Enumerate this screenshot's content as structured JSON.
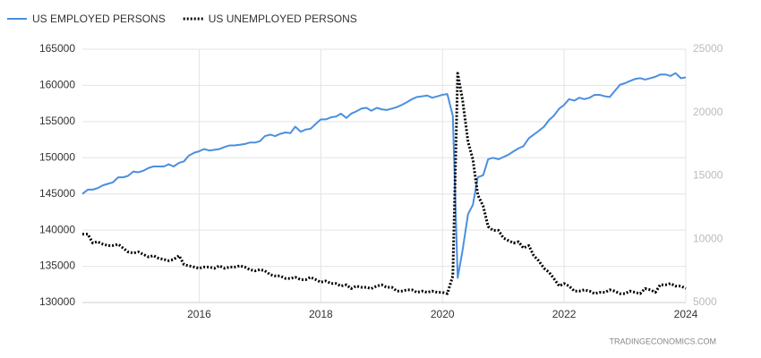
{
  "chart_data": {
    "type": "line",
    "watermark": "TRADINGECONOMICS.COM",
    "x": [
      2014.08,
      2014.17,
      2014.25,
      2014.33,
      2014.42,
      2014.5,
      2014.58,
      2014.67,
      2014.75,
      2014.83,
      2014.92,
      2015.0,
      2015.08,
      2015.17,
      2015.25,
      2015.33,
      2015.42,
      2015.5,
      2015.58,
      2015.67,
      2015.75,
      2015.83,
      2015.92,
      2016.0,
      2016.08,
      2016.17,
      2016.25,
      2016.33,
      2016.42,
      2016.5,
      2016.58,
      2016.67,
      2016.75,
      2016.83,
      2016.92,
      2017.0,
      2017.08,
      2017.17,
      2017.25,
      2017.33,
      2017.42,
      2017.5,
      2017.58,
      2017.67,
      2017.75,
      2017.83,
      2017.92,
      2018.0,
      2018.08,
      2018.17,
      2018.25,
      2018.33,
      2018.42,
      2018.5,
      2018.58,
      2018.67,
      2018.75,
      2018.83,
      2018.92,
      2019.0,
      2019.08,
      2019.17,
      2019.25,
      2019.33,
      2019.42,
      2019.5,
      2019.58,
      2019.67,
      2019.75,
      2019.83,
      2019.92,
      2020.0,
      2020.08,
      2020.17,
      2020.25,
      2020.33,
      2020.42,
      2020.5,
      2020.58,
      2020.67,
      2020.75,
      2020.83,
      2020.92,
      2021.0,
      2021.08,
      2021.17,
      2021.25,
      2021.33,
      2021.42,
      2021.5,
      2021.58,
      2021.67,
      2021.75,
      2021.83,
      2021.92,
      2022.0,
      2022.08,
      2022.17,
      2022.25,
      2022.33,
      2022.42,
      2022.5,
      2022.58,
      2022.67,
      2022.75,
      2022.83,
      2022.92,
      2023.0,
      2023.08,
      2023.17,
      2023.25,
      2023.33,
      2023.42,
      2023.5,
      2023.58,
      2023.67,
      2023.75,
      2023.83,
      2023.92,
      2024.0
    ],
    "series": [
      {
        "name": "US EMPLOYED PERSONS",
        "color": "#4a8fe0",
        "style": "solid",
        "axis": "y",
        "values": [
          145000,
          145600,
          145600,
          145800,
          146200,
          146400,
          146600,
          147300,
          147300,
          147500,
          148100,
          148000,
          148200,
          148600,
          148800,
          148800,
          148800,
          149100,
          148800,
          149300,
          149500,
          150300,
          150700,
          150900,
          151200,
          151000,
          151100,
          151200,
          151500,
          151700,
          151700,
          151800,
          151900,
          152100,
          152100,
          152300,
          153000,
          153200,
          153000,
          153300,
          153500,
          153400,
          154300,
          153600,
          153900,
          154000,
          154700,
          155300,
          155300,
          155600,
          155700,
          156100,
          155500,
          156100,
          156400,
          156800,
          156900,
          156500,
          156900,
          156700,
          156600,
          156800,
          157000,
          157300,
          157700,
          158100,
          158400,
          158500,
          158600,
          158300,
          158500,
          158700,
          158800,
          155800,
          133400,
          137200,
          142200,
          143500,
          147300,
          147600,
          149800,
          150000,
          149800,
          150100,
          150400,
          150900,
          151300,
          151600,
          152700,
          153200,
          153700,
          154300,
          155200,
          155800,
          156800,
          157300,
          158100,
          157900,
          158300,
          158100,
          158300,
          158700,
          158700,
          158500,
          158400,
          159200,
          160100,
          160300,
          160600,
          160900,
          161000,
          160800,
          161000,
          161200,
          161500,
          161500,
          161300,
          161700,
          161000,
          161100
        ]
      },
      {
        "name": "US UNEMPLOYED PERSONS",
        "color": "#000000",
        "style": "dotted",
        "axis": "y2",
        "values": [
          10400,
          10400,
          9700,
          9800,
          9600,
          9500,
          9500,
          9600,
          9300,
          9000,
          8900,
          9000,
          8800,
          8600,
          8700,
          8500,
          8400,
          8300,
          8400,
          8700,
          8000,
          7900,
          7800,
          7700,
          7800,
          7800,
          7700,
          7900,
          7700,
          7800,
          7800,
          7900,
          7800,
          7600,
          7500,
          7600,
          7500,
          7200,
          7100,
          7100,
          6900,
          6900,
          7000,
          6800,
          6800,
          7000,
          6800,
          6600,
          6700,
          6500,
          6500,
          6300,
          6400,
          6100,
          6300,
          6200,
          6200,
          6100,
          6300,
          6400,
          6200,
          6200,
          5900,
          5900,
          6000,
          6000,
          5800,
          5900,
          5800,
          5900,
          5800,
          5800,
          5700,
          7100,
          23100,
          21000,
          17700,
          16300,
          13500,
          12600,
          11000,
          10700,
          10700,
          10100,
          9900,
          9700,
          9800,
          9300,
          9500,
          8700,
          8300,
          7700,
          7400,
          6900,
          6300,
          6500,
          6300,
          5900,
          5900,
          6000,
          5900,
          5700,
          5800,
          5800,
          6000,
          5900,
          5700,
          5700,
          5900,
          5800,
          5700,
          6100,
          6000,
          5800,
          6400,
          6400,
          6500,
          6300,
          6300,
          6100
        ]
      }
    ],
    "xlim": [
      2014.08,
      2024.0
    ],
    "xticks": [
      2016,
      2018,
      2020,
      2022,
      2024
    ],
    "ylim": [
      130000,
      165000
    ],
    "yticks": [
      130000,
      135000,
      140000,
      145000,
      150000,
      155000,
      160000,
      165000
    ],
    "y2lim": [
      5000,
      25000
    ],
    "y2ticks": [
      5000,
      10000,
      15000,
      20000,
      25000
    ],
    "grid": true
  }
}
